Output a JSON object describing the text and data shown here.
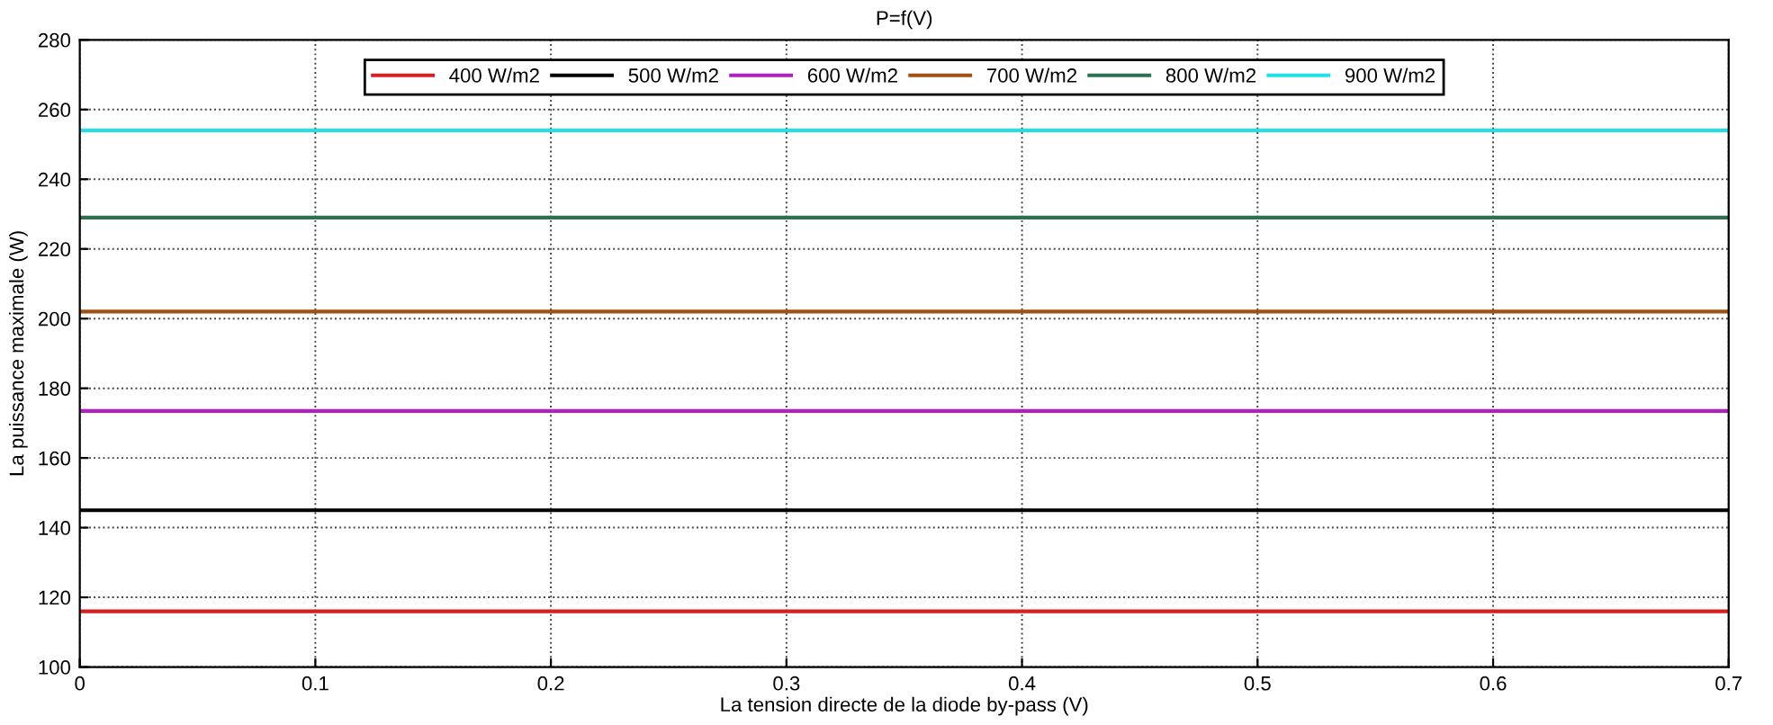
{
  "chart_data": {
    "type": "line",
    "title": "P=f(V)",
    "xlabel": "La tension directe de la diode by-pass (V)",
    "ylabel": "La puissance maximale (W)",
    "x": [
      0,
      0.7
    ],
    "series": [
      {
        "name": "400 W/m2",
        "color": "#d62020",
        "values": [
          116,
          116
        ]
      },
      {
        "name": "500 W/m2",
        "color": "#000000",
        "values": [
          145,
          145
        ]
      },
      {
        "name": "600 W/m2",
        "color": "#b020c0",
        "values": [
          173.5,
          173.5
        ]
      },
      {
        "name": "700 W/m2",
        "color": "#a05010",
        "values": [
          202,
          202
        ]
      },
      {
        "name": "800 W/m2",
        "color": "#2e7050",
        "values": [
          229,
          229
        ]
      },
      {
        "name": "900 W/m2",
        "color": "#20e0e8",
        "values": [
          254,
          254
        ]
      }
    ],
    "xlim": [
      0,
      0.7
    ],
    "xticks": [
      0,
      0.1,
      0.2,
      0.3,
      0.4,
      0.5,
      0.6,
      0.7
    ],
    "ylim": [
      100,
      280
    ],
    "yticks": [
      100,
      120,
      140,
      160,
      180,
      200,
      220,
      240,
      260,
      280
    ],
    "grid": true,
    "legend": "top",
    "marker": "none",
    "line_style": "solid"
  }
}
